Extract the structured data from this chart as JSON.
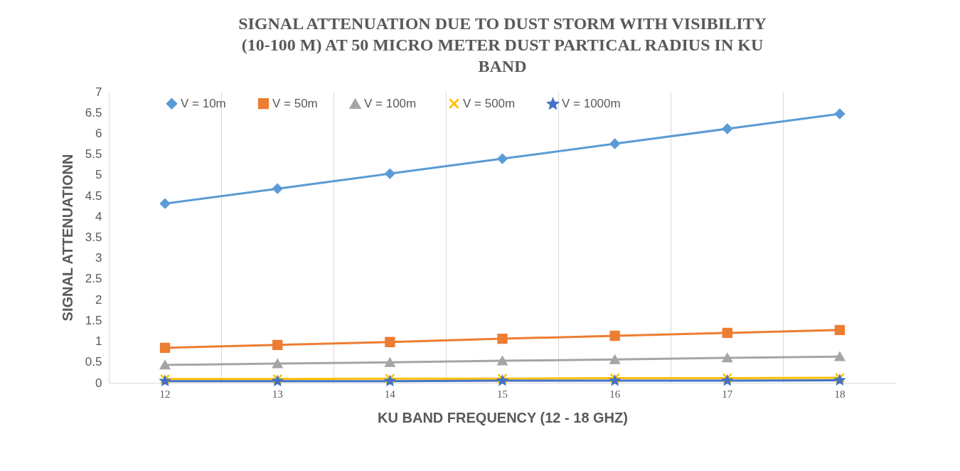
{
  "chart_data": {
    "type": "line",
    "title": "SIGNAL ATTENUATION DUE  TO DUST STORM WITH VISIBILITY (10-100 M) AT 50 MICRO METER DUST PARTICAL RADIUS IN KU BAND",
    "xlabel": "KU BAND FREQUENCY (12 - 18 GHZ)",
    "ylabel": "SIGNAL ATTENUATIONN",
    "categories": [
      "12",
      "13",
      "14",
      "15",
      "16",
      "17",
      "18"
    ],
    "series": [
      {
        "name": "V = 10m",
        "color": "#5b9bd5",
        "marker": "diamond",
        "values": [
          4.31,
          4.67,
          5.03,
          5.39,
          5.75,
          6.11,
          6.47
        ]
      },
      {
        "name": "V = 50m",
        "color": "#ed7d31",
        "marker": "square",
        "values": [
          0.84,
          0.91,
          0.98,
          1.06,
          1.13,
          1.2,
          1.27
        ]
      },
      {
        "name": "V = 100m",
        "color": "#a5a5a5",
        "marker": "triangle",
        "values": [
          0.43,
          0.46,
          0.49,
          0.53,
          0.56,
          0.6,
          0.63
        ]
      },
      {
        "name": "V = 500m",
        "color": "#ffc000",
        "marker": "cross",
        "values": [
          0.09,
          0.09,
          0.1,
          0.1,
          0.11,
          0.11,
          0.12
        ]
      },
      {
        "name": "V = 1000m",
        "color": "#4472c4",
        "marker": "star",
        "values": [
          0.04,
          0.04,
          0.04,
          0.05,
          0.05,
          0.05,
          0.06
        ]
      }
    ],
    "ylim": [
      0,
      7
    ],
    "yticks": [
      0,
      0.5,
      1,
      1.5,
      2,
      2.5,
      3,
      3.5,
      4,
      4.5,
      5,
      5.5,
      6,
      6.5,
      7
    ],
    "grid": "x",
    "legend": "top"
  }
}
